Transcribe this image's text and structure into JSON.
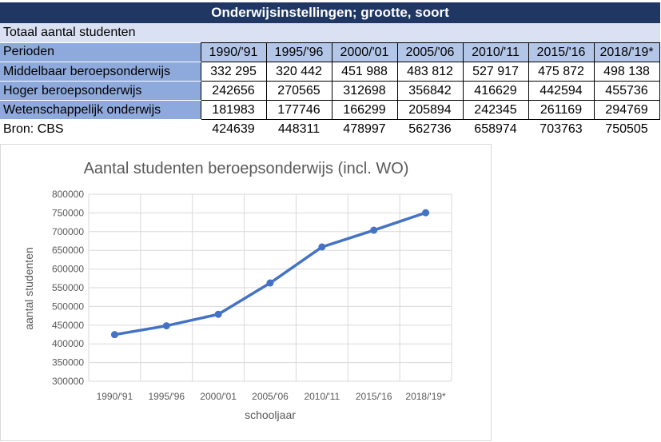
{
  "sheet": {
    "title": "Onderwijsinstellingen; grootte, soort",
    "subtitle": "Totaal aantal studenten",
    "header_label": "Perioden",
    "periods": [
      "1990/'91",
      "1995/'96",
      "2000/'01",
      "2005/'06",
      "2010/'11",
      "2015/'16",
      "2018/'19*"
    ],
    "rows": [
      {
        "label": "Middelbaar beroepsonderwijs",
        "values": [
          "332 295",
          "320 442",
          "451 988",
          "483 812",
          "527 917",
          "475 872",
          "498 138"
        ]
      },
      {
        "label": "Hoger beroepsonderwijs",
        "values": [
          "242656",
          "270565",
          "312698",
          "356842",
          "416629",
          "442594",
          "455736"
        ]
      },
      {
        "label": "Wetenschappelijk onderwijs",
        "values": [
          "181983",
          "177746",
          "166299",
          "205894",
          "242345",
          "261169",
          "294769"
        ]
      }
    ],
    "source_label": "Bron: CBS",
    "totals": [
      "424639",
      "448311",
      "478997",
      "562736",
      "658974",
      "703763",
      "750505"
    ]
  },
  "chart_data": {
    "type": "line",
    "title": "Aantal studenten beroepsonderwijs (incl. WO)",
    "xlabel": "schooljaar",
    "ylabel": "aantal studenten",
    "categories": [
      "1990/'91",
      "1995/'96",
      "2000/'01",
      "2005/'06",
      "2010/'11",
      "2015/'16",
      "2018/'19*"
    ],
    "series": [
      {
        "values": [
          424639,
          448311,
          478997,
          562736,
          658974,
          703763,
          750505
        ]
      }
    ],
    "ylim": [
      300000,
      800000
    ],
    "yticks": [
      "800000",
      "750000",
      "700000",
      "650000",
      "600000",
      "550000",
      "500000",
      "450000",
      "400000",
      "350000",
      "300000"
    ],
    "line_color": "#4472c4",
    "grid": true,
    "legend": "none"
  }
}
